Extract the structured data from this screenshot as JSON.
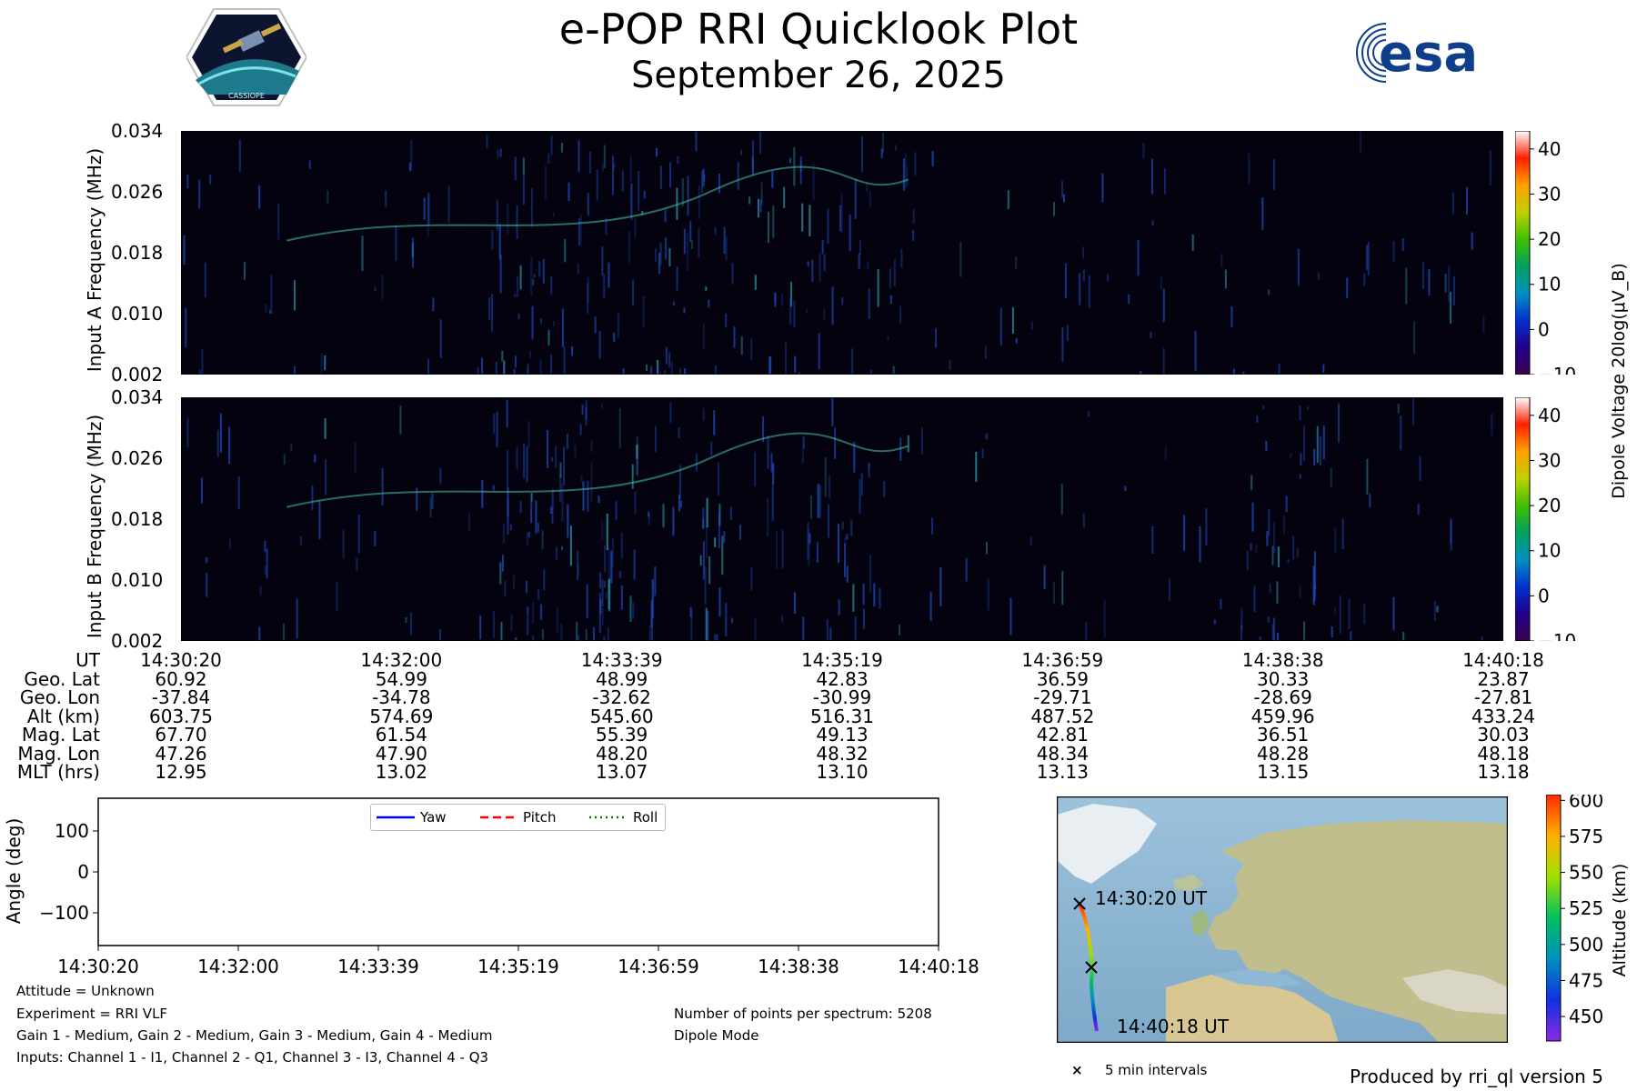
{
  "header": {
    "title": "e-POP RRI Quicklook Plot",
    "date": "September 26, 2025",
    "logo_left_text": "CASSIOPE",
    "logo_right_text": "esa"
  },
  "chart_data": [
    {
      "type": "heatmap",
      "ylabel": "Input A Frequency (MHz)",
      "yticks": [
        "0.002",
        "0.010",
        "0.018",
        "0.026",
        "0.034"
      ],
      "ylim": [
        0.002,
        0.034
      ],
      "colorbar_ticks": [
        "−10",
        "0",
        "10",
        "20",
        "30",
        "40"
      ],
      "colorbar_range": [
        -10,
        44
      ]
    },
    {
      "type": "heatmap",
      "ylabel": "Input B Frequency (MHz)",
      "yticks": [
        "0.002",
        "0.010",
        "0.018",
        "0.026",
        "0.034"
      ],
      "ylim": [
        0.002,
        0.034
      ],
      "colorbar_ticks": [
        "−10",
        "0",
        "10",
        "20",
        "30",
        "40"
      ],
      "colorbar_range": [
        -10,
        44
      ],
      "colorbar_label": "Dipole Voltage 20log(μV_B)"
    },
    {
      "type": "line",
      "ylabel": "Angle (deg)",
      "yticks": [
        "−100",
        "0",
        "100"
      ],
      "ylim": [
        -180,
        180
      ],
      "xticks": [
        "14:30:20",
        "14:32:00",
        "14:33:39",
        "14:35:19",
        "14:36:59",
        "14:38:38",
        "14:40:18"
      ],
      "series": [
        {
          "name": "Yaw",
          "values": [],
          "color": "#0000ff",
          "style": "solid"
        },
        {
          "name": "Pitch",
          "values": [],
          "color": "#ff0000",
          "style": "dashed"
        },
        {
          "name": "Roll",
          "values": [],
          "color": "#008000",
          "style": "dotted"
        }
      ],
      "legend": "top-center"
    }
  ],
  "ephemeris": {
    "row_labels": [
      "UT",
      "Geo. Lat",
      "Geo. Lon",
      "Alt (km)",
      "Mag. Lat",
      "Mag. Lon",
      "MLT (hrs)"
    ],
    "columns": [
      [
        "14:30:20",
        "60.92",
        "-37.84",
        "603.75",
        "67.70",
        "47.26",
        "12.95"
      ],
      [
        "14:32:00",
        "54.99",
        "-34.78",
        "574.69",
        "61.54",
        "47.90",
        "13.02"
      ],
      [
        "14:33:39",
        "48.99",
        "-32.62",
        "545.60",
        "55.39",
        "48.20",
        "13.07"
      ],
      [
        "14:35:19",
        "42.83",
        "-30.99",
        "516.31",
        "49.13",
        "48.32",
        "13.10"
      ],
      [
        "14:36:59",
        "36.59",
        "-29.71",
        "487.52",
        "42.81",
        "48.34",
        "13.13"
      ],
      [
        "14:38:38",
        "30.33",
        "-28.69",
        "459.96",
        "36.51",
        "48.28",
        "13.15"
      ],
      [
        "14:40:18",
        "23.87",
        "-27.81",
        "433.24",
        "30.03",
        "48.18",
        "13.18"
      ]
    ]
  },
  "info": {
    "attitude": "Attitude = Unknown",
    "experiment": "Experiment = RRI VLF",
    "gains": "Gain 1 - Medium, Gain 2 - Medium, Gain 3 - Medium, Gain 4 - Medium",
    "inputs": "Inputs: Channel 1 - I1, Channel 2 - Q1, Channel 3 - I3, Channel 4 - Q3",
    "points": "Number of points per spectrum: 5208",
    "mode": "Dipole Mode"
  },
  "map": {
    "start_label": "14:30:20 UT",
    "end_label": "14:40:18 UT",
    "interval_legend": "5 min intervals",
    "colorbar_label": "Altitude (km)",
    "colorbar_ticks": [
      "600",
      "575",
      "550",
      "525",
      "500",
      "475",
      "450"
    ],
    "colorbar_range": [
      433,
      604
    ]
  },
  "footer": {
    "produced_by": "Produced by rri_ql version 5"
  },
  "colors": {
    "spectrogram_bg": "#05020f",
    "emission": "#1e50c8",
    "ocean": "#8fb8d6",
    "land": "#c9c49a"
  }
}
